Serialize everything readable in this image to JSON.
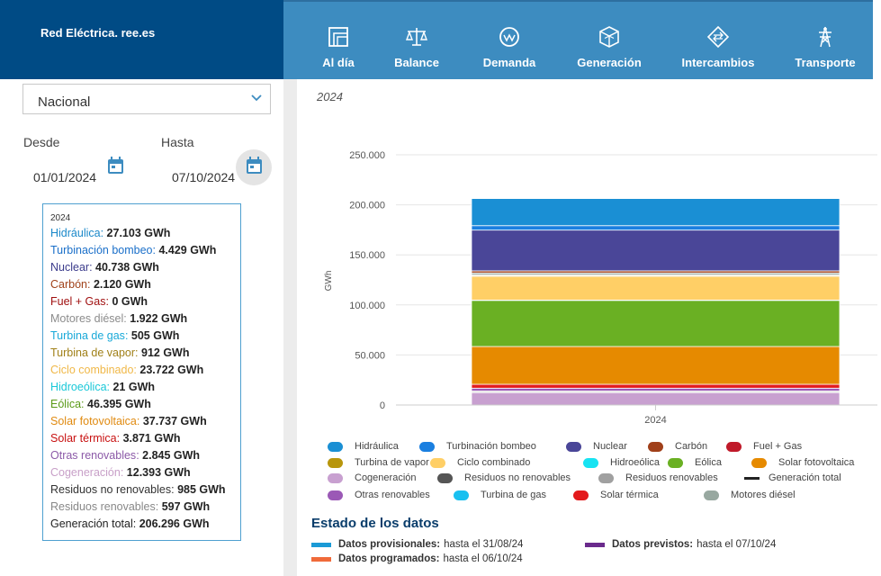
{
  "header": {
    "brand": "Red Eléctrica. ree.es",
    "nav": [
      {
        "label": "Al día",
        "icon": "calendar-doc-icon"
      },
      {
        "label": "Balance",
        "icon": "scale-icon"
      },
      {
        "label": "Demanda",
        "icon": "demand-gauge-icon"
      },
      {
        "label": "Generación",
        "icon": "cube-icon"
      },
      {
        "label": "Intercambios",
        "icon": "exchange-icon"
      },
      {
        "label": "Transporte",
        "icon": "pylon-icon"
      }
    ]
  },
  "filters": {
    "region": "Nacional",
    "from_label": "Desde",
    "to_label": "Hasta",
    "from_date": "01/01/2024",
    "to_date": "07/10/2024"
  },
  "tooltip": {
    "year": "2024",
    "rows": [
      {
        "label": "Hidráulica",
        "value": "27.103 GWh",
        "color": "#1a88c9"
      },
      {
        "label": "Turbinación bombeo",
        "value": "4.429 GWh",
        "color": "#1a6fc9"
      },
      {
        "label": "Nuclear",
        "value": "40.738 GWh",
        "color": "#3c3c8c"
      },
      {
        "label": "Carbón",
        "value": "2.120 GWh",
        "color": "#a0421a"
      },
      {
        "label": "Fuel + Gas",
        "value": "0 GWh",
        "color": "#a01010"
      },
      {
        "label": "Motores diésel",
        "value": "1.922 GWh",
        "color": "#8c8c8c"
      },
      {
        "label": "Turbina de gas",
        "value": "505 GWh",
        "color": "#19a9d8"
      },
      {
        "label": "Turbina de vapor",
        "value": "912 GWh",
        "color": "#a08018"
      },
      {
        "label": "Ciclo combinado",
        "value": "23.722 GWh",
        "color": "#f0b848"
      },
      {
        "label": "Hidroeólica",
        "value": "21 GWh",
        "color": "#19c8d8"
      },
      {
        "label": "Eólica",
        "value": "46.395 GWh",
        "color": "#5a9a18"
      },
      {
        "label": "Solar fotovoltaica",
        "value": "37.737 GWh",
        "color": "#e08a10"
      },
      {
        "label": "Solar térmica",
        "value": "3.871 GWh",
        "color": "#c81010"
      },
      {
        "label": "Otras renovables",
        "value": "2.845 GWh",
        "color": "#8c5aa8"
      },
      {
        "label": "Cogeneración",
        "value": "12.393 GWh",
        "color": "#c8a0c8"
      },
      {
        "label": "Residuos no renovables",
        "value": "985 GWh",
        "color": "#333333"
      },
      {
        "label": "Residuos renovables",
        "value": "597 GWh",
        "color": "#888888"
      },
      {
        "label": "Generación total",
        "value": "206.296 GWh",
        "color": "#222222"
      }
    ]
  },
  "chart_data": {
    "type": "bar",
    "title": "2024",
    "categories": [
      "2024"
    ],
    "ylabel": "GWh",
    "ylim": [
      0,
      250000
    ],
    "yticks": [
      0,
      50000,
      100000,
      150000,
      200000,
      250000
    ],
    "ytick_labels": [
      "0",
      "50.000",
      "100.000",
      "150.000",
      "200.000",
      "250.000"
    ],
    "grid": true,
    "series": [
      {
        "name": "Cogeneración",
        "values": [
          12393
        ],
        "color": "#c8a0d0"
      },
      {
        "name": "Residuos renovables",
        "values": [
          597
        ],
        "color": "#a0a0a0"
      },
      {
        "name": "Residuos no renovables",
        "values": [
          985
        ],
        "color": "#555555"
      },
      {
        "name": "Otras renovables",
        "values": [
          2845
        ],
        "color": "#9b59b6"
      },
      {
        "name": "Solar térmica",
        "values": [
          3871
        ],
        "color": "#e31a1c"
      },
      {
        "name": "Solar fotovoltaica",
        "values": [
          37737
        ],
        "color": "#e68a00"
      },
      {
        "name": "Eólica",
        "values": [
          46395
        ],
        "color": "#6ab023"
      },
      {
        "name": "Hidroeólica",
        "values": [
          21
        ],
        "color": "#17e3f2"
      },
      {
        "name": "Ciclo combinado",
        "values": [
          23722
        ],
        "color": "#ffcf66"
      },
      {
        "name": "Turbina de vapor",
        "values": [
          912
        ],
        "color": "#b8960c"
      },
      {
        "name": "Turbina de gas",
        "values": [
          505
        ],
        "color": "#19c0f0"
      },
      {
        "name": "Motores diésel",
        "values": [
          1922
        ],
        "color": "#98a8a0"
      },
      {
        "name": "Fuel + Gas",
        "values": [
          0
        ],
        "color": "#c01a2a"
      },
      {
        "name": "Carbón",
        "values": [
          2120
        ],
        "color": "#a0401a"
      },
      {
        "name": "Nuclear",
        "values": [
          40738
        ],
        "color": "#4a4698"
      },
      {
        "name": "Turbinación bombeo",
        "values": [
          4429
        ],
        "color": "#1a7fe0"
      },
      {
        "name": "Hidráulica",
        "values": [
          27103
        ],
        "color": "#1a8fd4"
      }
    ],
    "legend": [
      {
        "name": "Hidráulica",
        "color": "#1a8fd4",
        "kind": "swatch"
      },
      {
        "name": "Turbinación bombeo",
        "color": "#1a7fe0",
        "kind": "swatch"
      },
      {
        "name": "Nuclear",
        "color": "#4a4698",
        "kind": "swatch"
      },
      {
        "name": "Carbón",
        "color": "#a0401a",
        "kind": "swatch"
      },
      {
        "name": "Fuel + Gas",
        "color": "#c01a2a",
        "kind": "swatch"
      },
      {
        "name": "Turbina de vapor",
        "color": "#b8960c",
        "kind": "swatch"
      },
      {
        "name": "Ciclo combinado",
        "color": "#ffcf66",
        "kind": "swatch"
      },
      {
        "name": "Hidroeólica",
        "color": "#17e3f2",
        "kind": "swatch"
      },
      {
        "name": "Eólica",
        "color": "#6ab023",
        "kind": "swatch"
      },
      {
        "name": "Solar fotovoltaica",
        "color": "#e68a00",
        "kind": "swatch"
      },
      {
        "name": "Cogeneración",
        "color": "#c8a0d0",
        "kind": "swatch"
      },
      {
        "name": "Residuos no renovables",
        "color": "#555555",
        "kind": "swatch"
      },
      {
        "name": "Residuos renovables",
        "color": "#a0a0a0",
        "kind": "swatch"
      },
      {
        "name": "Generación total",
        "color": "#222222",
        "kind": "line"
      },
      {
        "name": "Otras renovables",
        "color": "#9b59b6",
        "kind": "swatch"
      },
      {
        "name": "Turbina de gas",
        "color": "#19c0f0",
        "kind": "swatch"
      },
      {
        "name": "Solar térmica",
        "color": "#e31a1c",
        "kind": "swatch"
      },
      {
        "name": "Motores diésel",
        "color": "#98a8a0",
        "kind": "swatch"
      }
    ]
  },
  "status": {
    "title": "Estado de los datos",
    "items": [
      {
        "label": "Datos provisionales:",
        "value": "hasta el 31/08/24",
        "color": "#1a9ad6"
      },
      {
        "label": "Datos previstos:",
        "value": "hasta el 07/10/24",
        "color": "#6a2a8c"
      },
      {
        "label": "Datos programados:",
        "value": "hasta el 06/10/24",
        "color": "#f06a3a"
      }
    ]
  }
}
